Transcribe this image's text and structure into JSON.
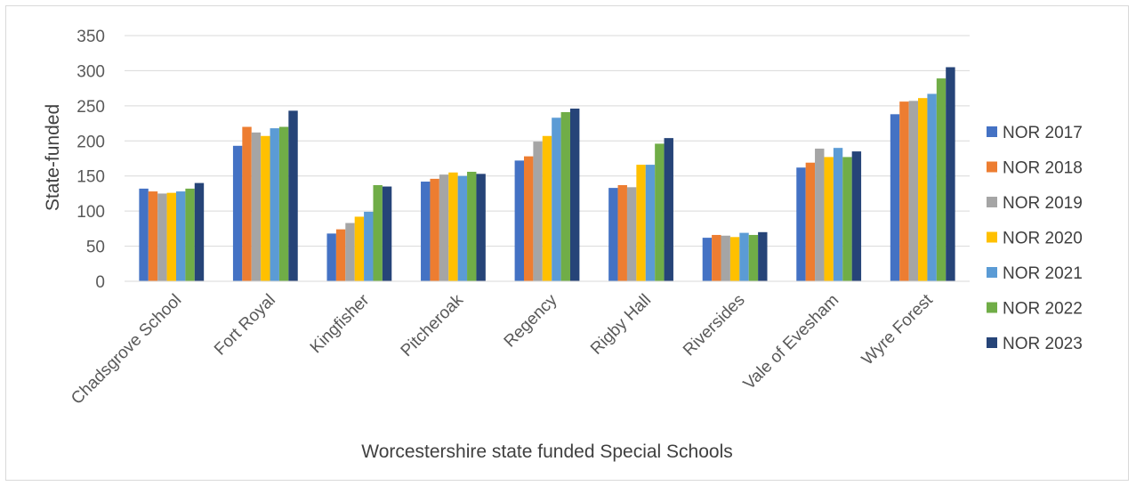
{
  "chart_data": {
    "type": "bar",
    "title": "",
    "xlabel": "Worcestershire state funded Special Schools",
    "ylabel": "State-funded",
    "ylim": [
      0,
      350
    ],
    "yticks": [
      0,
      50,
      100,
      150,
      200,
      250,
      300,
      350
    ],
    "grid": true,
    "legend_position": "right",
    "categories": [
      "Chadsgrove School",
      "Fort Royal",
      "Kingfisher",
      "Pitcheroak",
      "Regency",
      "Rigby Hall",
      "Riversides",
      "Vale of Evesham",
      "Wyre Forest"
    ],
    "series": [
      {
        "name": "NOR 2017",
        "color": "#4472c4",
        "values": [
          132,
          193,
          68,
          142,
          172,
          133,
          62,
          162,
          238
        ]
      },
      {
        "name": "NOR 2018",
        "color": "#ed7d31",
        "values": [
          128,
          220,
          74,
          146,
          178,
          137,
          66,
          169,
          256
        ]
      },
      {
        "name": "NOR 2019",
        "color": "#a5a5a5",
        "values": [
          125,
          212,
          83,
          152,
          199,
          134,
          65,
          189,
          257
        ]
      },
      {
        "name": "NOR 2020",
        "color": "#ffc000",
        "values": [
          126,
          207,
          92,
          155,
          207,
          166,
          63,
          177,
          261
        ]
      },
      {
        "name": "NOR 2021",
        "color": "#5b9bd5",
        "values": [
          128,
          218,
          99,
          150,
          233,
          166,
          69,
          190,
          267
        ]
      },
      {
        "name": "NOR 2022",
        "color": "#70ad47",
        "values": [
          132,
          220,
          137,
          156,
          241,
          196,
          66,
          177,
          289
        ]
      },
      {
        "name": "NOR 2023",
        "color": "#264478",
        "values": [
          140,
          243,
          135,
          153,
          246,
          204,
          70,
          185,
          305
        ]
      }
    ]
  }
}
